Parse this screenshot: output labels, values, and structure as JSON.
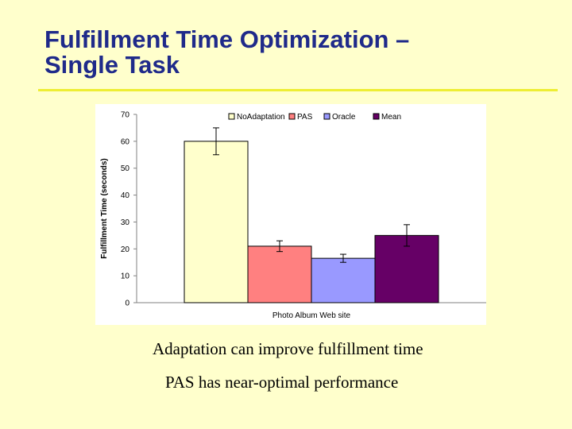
{
  "slide": {
    "title_line1": "Fulfillment Time Optimization –",
    "title_line2": "Single Task",
    "caption1": "Adaptation can improve fulfillment time",
    "caption2": "PAS has near-optimal performance"
  },
  "colors": {
    "background": "#ffffcc",
    "title": "#1f2a8a",
    "rule": "#eeee33"
  },
  "chart_data": {
    "type": "bar",
    "title": "",
    "xlabel": "Photo Album Web site",
    "ylabel": "Fulfillment Time (seconds)",
    "ylim": [
      0,
      70
    ],
    "yticks": [
      0,
      10,
      20,
      30,
      40,
      50,
      60,
      70
    ],
    "grid": false,
    "legend_position": "top",
    "categories": [
      "Photo Album Web site"
    ],
    "series": [
      {
        "name": "NoAdaptation",
        "values": [
          60
        ],
        "error": [
          5
        ],
        "color": "#ffffcc"
      },
      {
        "name": "PAS",
        "values": [
          21
        ],
        "error": [
          2
        ],
        "color": "#ff8080"
      },
      {
        "name": "Oracle",
        "values": [
          16.5
        ],
        "error": [
          1.5
        ],
        "color": "#9999ff"
      },
      {
        "name": "Mean",
        "values": [
          25
        ],
        "error": [
          4
        ],
        "color": "#660066"
      }
    ]
  }
}
